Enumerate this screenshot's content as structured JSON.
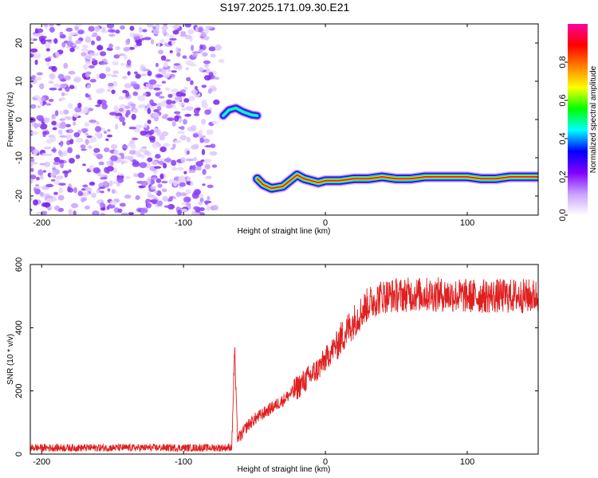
{
  "title": "S197.2025.171.09.30.E21",
  "chart_data": [
    {
      "type": "heatmap",
      "xlabel": "Height of straight line (km)",
      "ylabel": "Frequency (Hz)",
      "xlim": [
        -208,
        150
      ],
      "ylim": [
        -25,
        25
      ],
      "xticks": [
        -200,
        -100,
        0,
        100
      ],
      "yticks": [
        -20,
        -10,
        0,
        10,
        20
      ],
      "colorbar": {
        "label": "Normalized spectral amplitude",
        "range": [
          0,
          1
        ],
        "ticks": [
          0.0,
          0.2,
          0.4,
          0.6,
          0.8
        ],
        "tick_labels": [
          "0.0",
          "0.2",
          "0.4",
          "0.6",
          "0.8"
        ],
        "colors": [
          "#ffffff",
          "#c8a0ff",
          "#8000ff",
          "#0000ff",
          "#00ffff",
          "#00ff00",
          "#ffff00",
          "#ff8000",
          "#ff0000",
          "#ff00a0"
        ]
      },
      "noise_region": {
        "x": [
          -208,
          -75
        ],
        "y": [
          -25,
          25
        ],
        "amplitude": 0.15
      },
      "traces": [
        {
          "name": "",
          "points": [
            [
              -72,
              1
            ],
            [
              -68,
              2.5
            ],
            [
              -63,
              3
            ],
            [
              -58,
              2
            ],
            [
              -52,
              1.2
            ],
            [
              -48,
              1
            ]
          ],
          "amplitude": 0.4
        },
        {
          "name": "",
          "points": [
            [
              -48,
              -15.5
            ],
            [
              -44,
              -17
            ],
            [
              -38,
              -18
            ],
            [
              -30,
              -17.5
            ],
            [
              -25,
              -16
            ],
            [
              -20,
              -14.5
            ],
            [
              -15,
              -15.5
            ],
            [
              -10,
              -16
            ],
            [
              -5,
              -16.5
            ],
            [
              0,
              -16
            ],
            [
              10,
              -16
            ],
            [
              20,
              -15.5
            ],
            [
              30,
              -15.5
            ],
            [
              40,
              -15
            ],
            [
              50,
              -15.5
            ],
            [
              60,
              -15.5
            ],
            [
              70,
              -15
            ],
            [
              80,
              -15
            ],
            [
              90,
              -15
            ],
            [
              100,
              -15
            ],
            [
              110,
              -15.5
            ],
            [
              120,
              -15.5
            ],
            [
              130,
              -15
            ],
            [
              140,
              -15
            ],
            [
              150,
              -15
            ]
          ],
          "amplitude": 0.95
        }
      ]
    },
    {
      "type": "line",
      "xlabel": "Height of straight line (km)",
      "ylabel": "SNR (10 * v/v)",
      "xlim": [
        -208,
        150
      ],
      "ylim": [
        0,
        600
      ],
      "xticks": [
        -200,
        -100,
        0,
        100
      ],
      "yticks": [
        0,
        200,
        400,
        600
      ],
      "color": "#e02020",
      "envelope": {
        "x": [
          -208,
          -70,
          -66,
          -64,
          -62,
          -60,
          -55,
          -50,
          -40,
          -30,
          -20,
          -10,
          -5,
          0,
          5,
          10,
          20,
          30,
          40,
          60,
          80,
          100,
          120,
          150
        ],
        "y": [
          20,
          20,
          22,
          330,
          55,
          55,
          90,
          110,
          140,
          170,
          210,
          250,
          270,
          300,
          330,
          360,
          420,
          475,
          500,
          505,
          505,
          500,
          500,
          500
        ]
      },
      "noise_amplitude": [
        12,
        20,
        40,
        55
      ]
    }
  ]
}
